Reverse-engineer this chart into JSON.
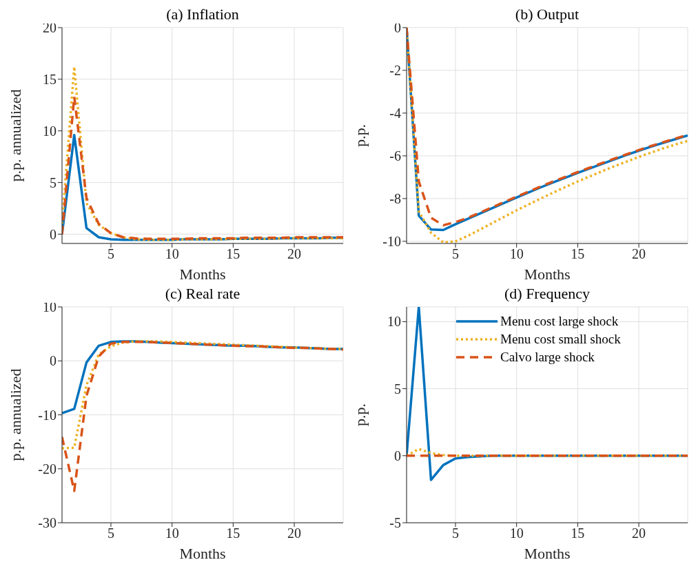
{
  "chart_data": [
    {
      "type": "line",
      "title": "(a) Inflation",
      "xlabel": "Months",
      "ylabel": "p.p. annualized",
      "x": [
        1,
        2,
        3,
        4,
        5,
        6,
        7,
        8,
        9,
        10,
        11,
        12,
        13,
        14,
        15,
        16,
        17,
        18,
        19,
        20,
        21,
        22,
        23,
        24
      ],
      "xlim": [
        1,
        24
      ],
      "xticks": [
        5,
        10,
        15,
        20
      ],
      "ylim": [
        -0.9,
        20
      ],
      "yticks": [
        0,
        5,
        10,
        15,
        20
      ],
      "grid": true,
      "marker": "none",
      "series": [
        {
          "color": "#0072bd",
          "line_style": "solid",
          "values": [
            0,
            9.6,
            0.6,
            -0.3,
            -0.5,
            -0.55,
            -0.55,
            -0.55,
            -0.55,
            -0.55,
            -0.5,
            -0.5,
            -0.5,
            -0.5,
            -0.45,
            -0.45,
            -0.45,
            -0.45,
            -0.4,
            -0.4,
            -0.4,
            -0.4,
            -0.35,
            -0.35
          ]
        },
        {
          "color": "#edb120",
          "line_style": "dotted",
          "values": [
            1.0,
            16.2,
            3.0,
            0.9,
            0.1,
            -0.3,
            -0.5,
            -0.55,
            -0.55,
            -0.55,
            -0.5,
            -0.5,
            -0.5,
            -0.5,
            -0.45,
            -0.45,
            -0.45,
            -0.45,
            -0.4,
            -0.4,
            -0.4,
            -0.4,
            -0.4,
            -0.4
          ]
        },
        {
          "color": "#d95319",
          "line_style": "dashed",
          "values": [
            0,
            13.3,
            3.5,
            1.0,
            0.1,
            -0.3,
            -0.4,
            -0.45,
            -0.45,
            -0.45,
            -0.45,
            -0.4,
            -0.4,
            -0.4,
            -0.4,
            -0.35,
            -0.35,
            -0.35,
            -0.35,
            -0.3,
            -0.3,
            -0.3,
            -0.3,
            -0.3
          ]
        }
      ]
    },
    {
      "type": "line",
      "title": "(b) Output",
      "xlabel": "Months",
      "ylabel": "p.p.",
      "x": [
        1,
        2,
        3,
        4,
        5,
        6,
        7,
        8,
        9,
        10,
        11,
        12,
        13,
        14,
        15,
        16,
        17,
        18,
        19,
        20,
        21,
        22,
        23,
        24
      ],
      "xlim": [
        1,
        24
      ],
      "xticks": [
        5,
        10,
        15,
        20
      ],
      "ylim": [
        -10.1,
        0
      ],
      "yticks": [
        -10,
        -8,
        -6,
        -4,
        -2,
        0
      ],
      "grid": true,
      "marker": "none",
      "series": [
        {
          "color": "#0072bd",
          "line_style": "solid",
          "values": [
            0,
            -8.8,
            -9.45,
            -9.47,
            -9.2,
            -8.95,
            -8.7,
            -8.45,
            -8.2,
            -7.95,
            -7.71,
            -7.47,
            -7.24,
            -7.02,
            -6.8,
            -6.59,
            -6.38,
            -6.17,
            -5.96,
            -5.76,
            -5.57,
            -5.39,
            -5.22,
            -5.05
          ]
        },
        {
          "color": "#edb120",
          "line_style": "dotted",
          "values": [
            0,
            -8.6,
            -9.6,
            -10.05,
            -10.0,
            -9.75,
            -9.45,
            -9.15,
            -8.85,
            -8.55,
            -8.27,
            -7.99,
            -7.72,
            -7.46,
            -7.2,
            -6.96,
            -6.72,
            -6.49,
            -6.27,
            -6.05,
            -5.85,
            -5.65,
            -5.47,
            -5.3
          ]
        },
        {
          "color": "#d95319",
          "line_style": "dashed",
          "values": [
            0,
            -7.2,
            -8.9,
            -9.25,
            -9.1,
            -8.9,
            -8.66,
            -8.41,
            -8.16,
            -7.91,
            -7.67,
            -7.43,
            -7.2,
            -6.98,
            -6.76,
            -6.55,
            -6.34,
            -6.13,
            -5.93,
            -5.73,
            -5.54,
            -5.36,
            -5.19,
            -5.02
          ]
        }
      ]
    },
    {
      "type": "line",
      "title": "(c) Real rate",
      "xlabel": "Months",
      "ylabel": "p.p. annualized",
      "x": [
        1,
        2,
        3,
        4,
        5,
        6,
        7,
        8,
        9,
        10,
        11,
        12,
        13,
        14,
        15,
        16,
        17,
        18,
        19,
        20,
        21,
        22,
        23,
        24
      ],
      "xlim": [
        1,
        24
      ],
      "xticks": [
        5,
        10,
        15,
        20
      ],
      "ylim": [
        -30,
        10
      ],
      "yticks": [
        -30,
        -20,
        -10,
        0,
        10
      ],
      "grid": true,
      "marker": "none",
      "series": [
        {
          "color": "#0072bd",
          "line_style": "solid",
          "values": [
            -9.7,
            -8.9,
            -0.3,
            2.8,
            3.5,
            3.6,
            3.6,
            3.5,
            3.4,
            3.3,
            3.2,
            3.1,
            3.0,
            2.9,
            2.8,
            2.8,
            2.7,
            2.6,
            2.5,
            2.5,
            2.4,
            2.3,
            2.2,
            2.2
          ]
        },
        {
          "color": "#edb120",
          "line_style": "dotted",
          "values": [
            -16.2,
            -16.1,
            -4.5,
            1.2,
            2.7,
            3.4,
            3.6,
            3.6,
            3.6,
            3.5,
            3.4,
            3.3,
            3.2,
            3.1,
            3.0,
            2.9,
            2.8,
            2.7,
            2.6,
            2.5,
            2.4,
            2.3,
            2.2,
            2.2
          ]
        },
        {
          "color": "#d95319",
          "line_style": "dashed",
          "values": [
            -14.1,
            -24.1,
            -6.5,
            0.8,
            3.2,
            3.5,
            3.5,
            3.5,
            3.4,
            3.3,
            3.2,
            3.1,
            3.0,
            2.9,
            2.8,
            2.7,
            2.7,
            2.6,
            2.5,
            2.4,
            2.4,
            2.3,
            2.2,
            2.1
          ]
        }
      ]
    },
    {
      "type": "line",
      "title": "(d) Frequency",
      "xlabel": "Months",
      "ylabel": "p.p.",
      "x": [
        1,
        2,
        3,
        4,
        5,
        6,
        7,
        8,
        9,
        10,
        11,
        12,
        13,
        14,
        15,
        16,
        17,
        18,
        19,
        20,
        21,
        22,
        23,
        24
      ],
      "xlim": [
        1,
        24
      ],
      "xticks": [
        5,
        10,
        15,
        20
      ],
      "ylim": [
        -5,
        11.1
      ],
      "yticks": [
        -5,
        0,
        5,
        10
      ],
      "grid": true,
      "marker": "none",
      "legend": "top",
      "series": [
        {
          "name": "Menu cost large shock",
          "color": "#0072bd",
          "line_style": "solid",
          "values": [
            0,
            11.1,
            -1.8,
            -0.7,
            -0.2,
            -0.1,
            -0.05,
            0,
            0,
            0,
            0,
            0,
            0,
            0,
            0,
            0,
            0,
            0,
            0,
            0,
            0,
            0,
            0,
            0
          ]
        },
        {
          "name": "Menu cost small shock",
          "color": "#edb120",
          "line_style": "dotted",
          "values": [
            0,
            0.5,
            0.2,
            0.05,
            0,
            0,
            0,
            0,
            0,
            0,
            0,
            0,
            0,
            0,
            0,
            0,
            0,
            0,
            0,
            0,
            0,
            0,
            0,
            0
          ]
        },
        {
          "name": "Calvo large shock",
          "color": "#d95319",
          "line_style": "dashed",
          "values": [
            0,
            0,
            0,
            0,
            0,
            0,
            0,
            0,
            0,
            0,
            0,
            0,
            0,
            0,
            0,
            0,
            0,
            0,
            0,
            0,
            0,
            0,
            0,
            0
          ]
        }
      ]
    }
  ]
}
